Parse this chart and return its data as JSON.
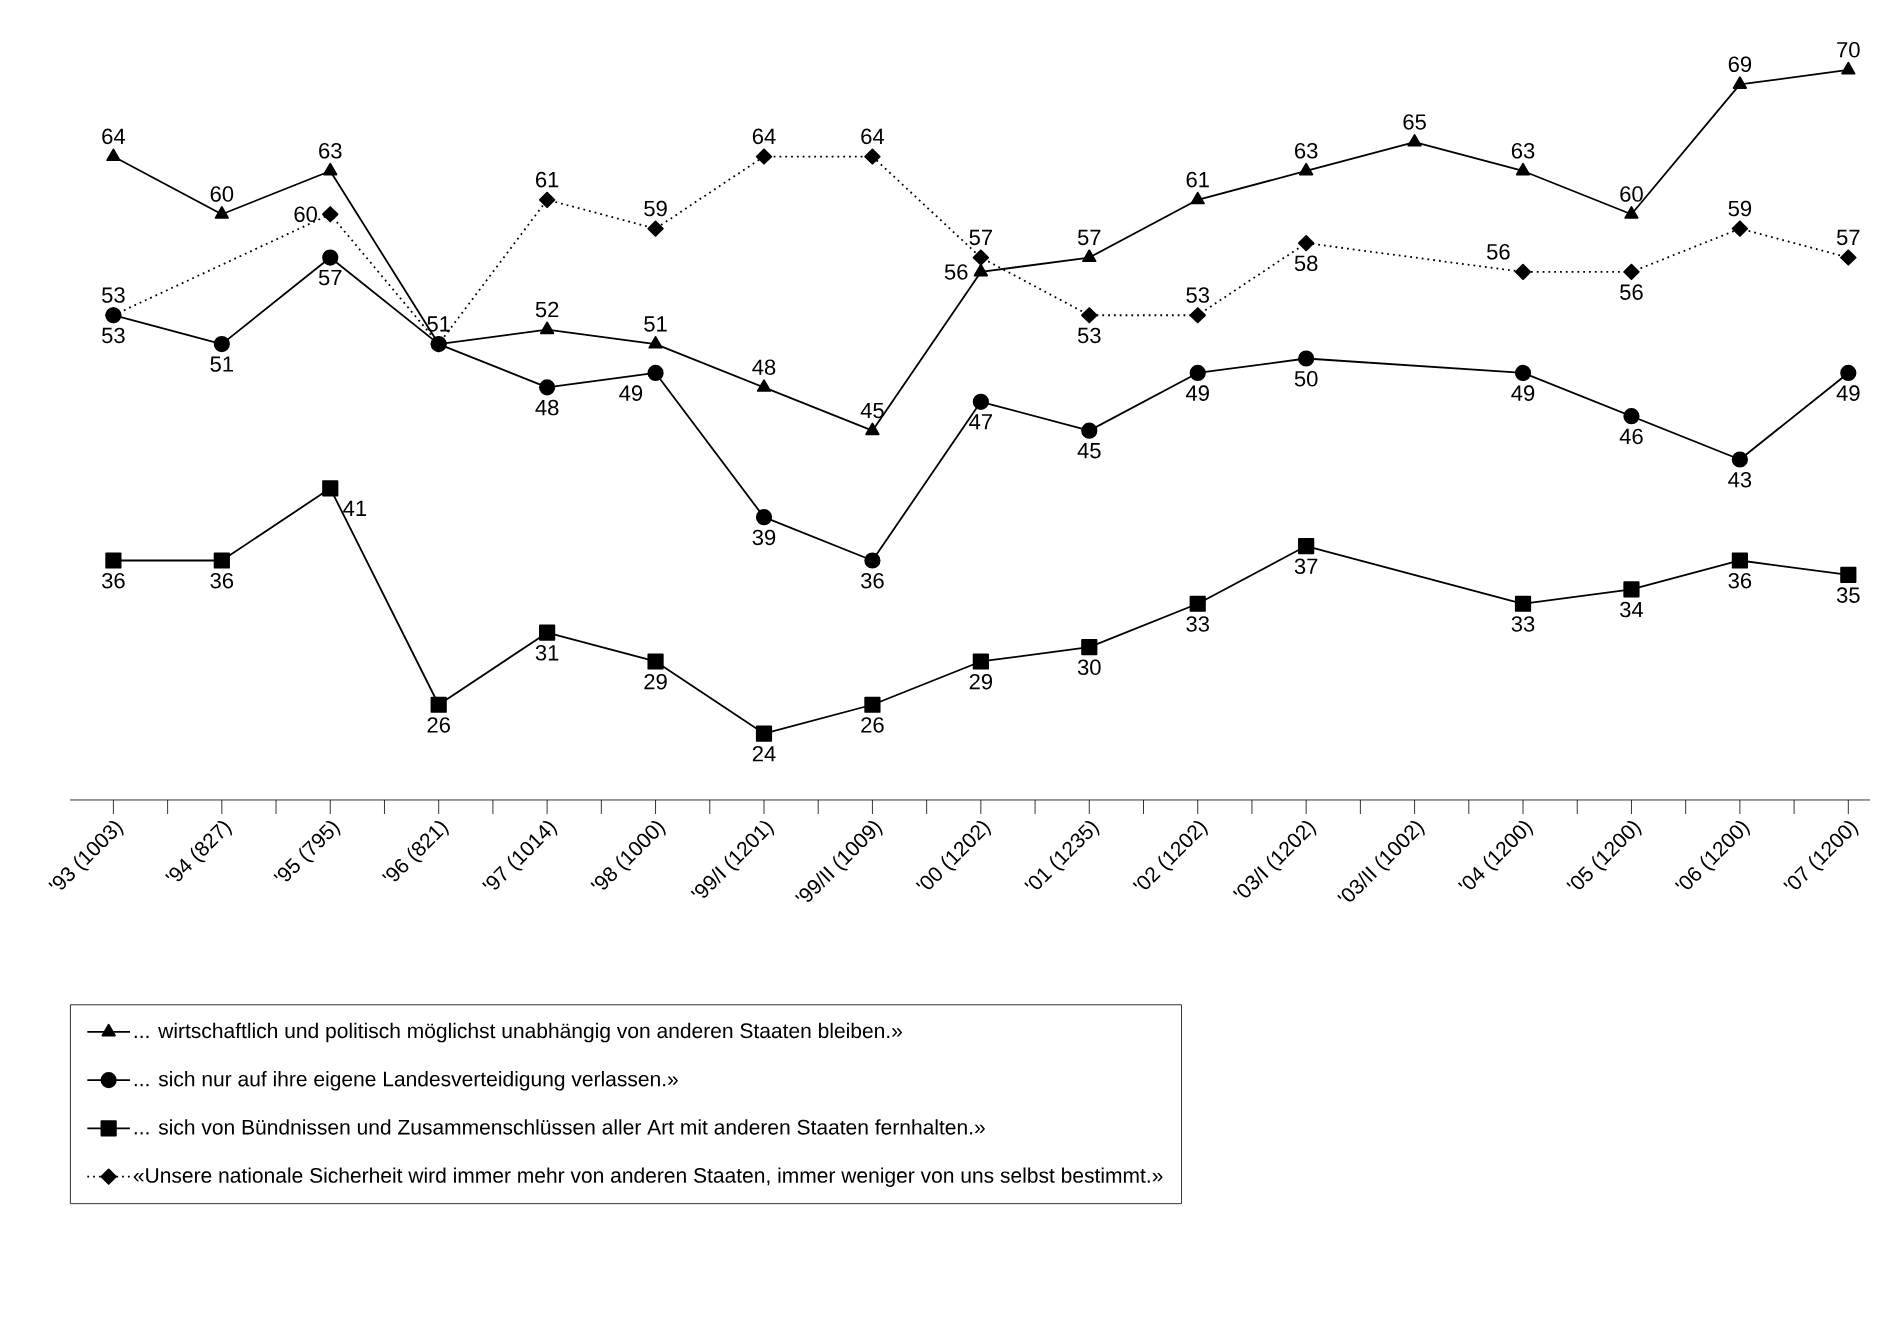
{
  "chart_data": {
    "type": "line",
    "categories": [
      "'93 (1003)",
      "'94 (827)",
      "'95 (795)",
      "'96 (821)",
      "'97 (1014)",
      "'98 (1000)",
      "'99/I (1201)",
      "'99/II (1009)",
      "'00 (1202)",
      "'01 (1235)",
      "'02 (1202)",
      "'03/I (1202)",
      "'03/II (1002)",
      "'04 (1200)",
      "'05 (1200)",
      "'06 (1200)",
      "'07 (1200)"
    ],
    "tick_labels": "x",
    "legend": "bottom",
    "series": [
      {
        "name": "... wirtschaftlich und politisch möglichst unabhängig von anderen Staaten bleiben.»",
        "color": "#000000",
        "marker": "triangle",
        "line_style": "solid",
        "values": [
          64,
          60,
          63,
          51,
          52,
          51,
          48,
          45,
          56,
          57,
          61,
          63,
          65,
          63,
          60,
          69,
          70
        ],
        "value_labels": [
          "64",
          "60",
          "63",
          null,
          "52",
          "51",
          "48",
          "45",
          "56",
          "57",
          "61",
          "63",
          "65",
          "63",
          "60",
          "69",
          "70"
        ]
      },
      {
        "name": "... sich nur auf ihre eigene Landesverteidigung verlassen.»",
        "color": "#000000",
        "marker": "circle",
        "line_style": "solid",
        "values": [
          53,
          51,
          57,
          51,
          48,
          49,
          39,
          36,
          47,
          45,
          49,
          50,
          null,
          49,
          46,
          43,
          49
        ],
        "value_labels": [
          "53",
          "51",
          "57",
          "51",
          "48",
          "49",
          "39",
          "36",
          "47",
          "45",
          "49",
          "50",
          null,
          "49",
          "46",
          "43",
          "49"
        ]
      },
      {
        "name": "... sich von Bündnissen und Zusammenschlüssen aller Art mit anderen Staaten fernhalten.»",
        "color": "#000000",
        "marker": "square",
        "line_style": "solid",
        "values": [
          36,
          36,
          41,
          26,
          31,
          29,
          24,
          26,
          29,
          30,
          33,
          37,
          null,
          33,
          34,
          36,
          35
        ],
        "value_labels": [
          "36",
          "36",
          "41",
          "26",
          "31",
          "29",
          "24",
          "26",
          "29",
          "30",
          "33",
          "37",
          null,
          "33",
          "34",
          "36",
          "35"
        ]
      },
      {
        "name": "«Unsere nationale Sicherheit wird immer mehr von anderen Staaten, immer weniger von uns selbst bestimmt.»",
        "color": "#000000",
        "marker": "diamond",
        "line_style": "dotted",
        "values": [
          53,
          null,
          60,
          51,
          61,
          59,
          64,
          64,
          57,
          53,
          53,
          58,
          null,
          56,
          56,
          59,
          57
        ],
        "value_labels": [
          "53",
          null,
          "60",
          null,
          "61",
          "59",
          "64",
          "64",
          "57",
          "53",
          "53",
          "58",
          null,
          "56",
          "56",
          "59",
          "57"
        ]
      }
    ]
  }
}
